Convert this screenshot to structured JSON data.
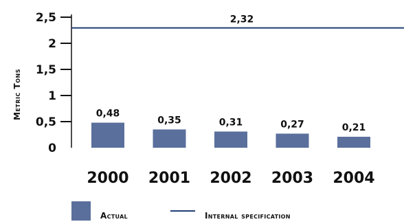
{
  "chart_data": {
    "type": "bar",
    "categories": [
      "2000",
      "2001",
      "2002",
      "2003",
      "2004"
    ],
    "series": [
      {
        "name": "Actual",
        "values": [
          0.48,
          0.35,
          0.31,
          0.27,
          0.21
        ],
        "color": "#5a6f9c"
      }
    ],
    "reference_line": {
      "name": "Internal specification",
      "value": 2.32,
      "label": "2,32",
      "color": "#1f3f73"
    },
    "data_labels": [
      "0,48",
      "0,35",
      "0,31",
      "0,27",
      "0,21"
    ],
    "ylabel": "Metric Tons",
    "xlabel": "",
    "ylim": [
      0,
      2.5
    ],
    "yticks": [
      0,
      0.5,
      1,
      1.5,
      2,
      2.5
    ],
    "ytick_labels": [
      "0",
      "0,5",
      "1",
      "1,5",
      "2",
      "2,5"
    ],
    "grid": false,
    "legend_position": "bottom"
  },
  "legend": {
    "actual_label": "Actual",
    "spec_label": "Internal specification"
  }
}
